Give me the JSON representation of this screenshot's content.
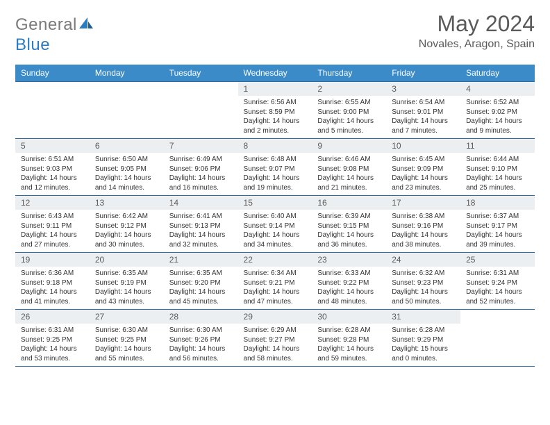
{
  "brand": {
    "word1": "General",
    "word2": "Blue"
  },
  "title": "May 2024",
  "location": "Novales, Aragon, Spain",
  "header_bg": "#3b8bc9",
  "rule_color": "#2b6ca3",
  "daynum_bg": "#eceff1",
  "dayHeaders": [
    "Sunday",
    "Monday",
    "Tuesday",
    "Wednesday",
    "Thursday",
    "Friday",
    "Saturday"
  ],
  "weeks": [
    [
      {
        "n": "",
        "sr": "",
        "ss": "",
        "dl": ""
      },
      {
        "n": "",
        "sr": "",
        "ss": "",
        "dl": ""
      },
      {
        "n": "",
        "sr": "",
        "ss": "",
        "dl": ""
      },
      {
        "n": "1",
        "sr": "6:56 AM",
        "ss": "8:59 PM",
        "dl": "14 hours and 2 minutes."
      },
      {
        "n": "2",
        "sr": "6:55 AM",
        "ss": "9:00 PM",
        "dl": "14 hours and 5 minutes."
      },
      {
        "n": "3",
        "sr": "6:54 AM",
        "ss": "9:01 PM",
        "dl": "14 hours and 7 minutes."
      },
      {
        "n": "4",
        "sr": "6:52 AM",
        "ss": "9:02 PM",
        "dl": "14 hours and 9 minutes."
      }
    ],
    [
      {
        "n": "5",
        "sr": "6:51 AM",
        "ss": "9:03 PM",
        "dl": "14 hours and 12 minutes."
      },
      {
        "n": "6",
        "sr": "6:50 AM",
        "ss": "9:05 PM",
        "dl": "14 hours and 14 minutes."
      },
      {
        "n": "7",
        "sr": "6:49 AM",
        "ss": "9:06 PM",
        "dl": "14 hours and 16 minutes."
      },
      {
        "n": "8",
        "sr": "6:48 AM",
        "ss": "9:07 PM",
        "dl": "14 hours and 19 minutes."
      },
      {
        "n": "9",
        "sr": "6:46 AM",
        "ss": "9:08 PM",
        "dl": "14 hours and 21 minutes."
      },
      {
        "n": "10",
        "sr": "6:45 AM",
        "ss": "9:09 PM",
        "dl": "14 hours and 23 minutes."
      },
      {
        "n": "11",
        "sr": "6:44 AM",
        "ss": "9:10 PM",
        "dl": "14 hours and 25 minutes."
      }
    ],
    [
      {
        "n": "12",
        "sr": "6:43 AM",
        "ss": "9:11 PM",
        "dl": "14 hours and 27 minutes."
      },
      {
        "n": "13",
        "sr": "6:42 AM",
        "ss": "9:12 PM",
        "dl": "14 hours and 30 minutes."
      },
      {
        "n": "14",
        "sr": "6:41 AM",
        "ss": "9:13 PM",
        "dl": "14 hours and 32 minutes."
      },
      {
        "n": "15",
        "sr": "6:40 AM",
        "ss": "9:14 PM",
        "dl": "14 hours and 34 minutes."
      },
      {
        "n": "16",
        "sr": "6:39 AM",
        "ss": "9:15 PM",
        "dl": "14 hours and 36 minutes."
      },
      {
        "n": "17",
        "sr": "6:38 AM",
        "ss": "9:16 PM",
        "dl": "14 hours and 38 minutes."
      },
      {
        "n": "18",
        "sr": "6:37 AM",
        "ss": "9:17 PM",
        "dl": "14 hours and 39 minutes."
      }
    ],
    [
      {
        "n": "19",
        "sr": "6:36 AM",
        "ss": "9:18 PM",
        "dl": "14 hours and 41 minutes."
      },
      {
        "n": "20",
        "sr": "6:35 AM",
        "ss": "9:19 PM",
        "dl": "14 hours and 43 minutes."
      },
      {
        "n": "21",
        "sr": "6:35 AM",
        "ss": "9:20 PM",
        "dl": "14 hours and 45 minutes."
      },
      {
        "n": "22",
        "sr": "6:34 AM",
        "ss": "9:21 PM",
        "dl": "14 hours and 47 minutes."
      },
      {
        "n": "23",
        "sr": "6:33 AM",
        "ss": "9:22 PM",
        "dl": "14 hours and 48 minutes."
      },
      {
        "n": "24",
        "sr": "6:32 AM",
        "ss": "9:23 PM",
        "dl": "14 hours and 50 minutes."
      },
      {
        "n": "25",
        "sr": "6:31 AM",
        "ss": "9:24 PM",
        "dl": "14 hours and 52 minutes."
      }
    ],
    [
      {
        "n": "26",
        "sr": "6:31 AM",
        "ss": "9:25 PM",
        "dl": "14 hours and 53 minutes."
      },
      {
        "n": "27",
        "sr": "6:30 AM",
        "ss": "9:25 PM",
        "dl": "14 hours and 55 minutes."
      },
      {
        "n": "28",
        "sr": "6:30 AM",
        "ss": "9:26 PM",
        "dl": "14 hours and 56 minutes."
      },
      {
        "n": "29",
        "sr": "6:29 AM",
        "ss": "9:27 PM",
        "dl": "14 hours and 58 minutes."
      },
      {
        "n": "30",
        "sr": "6:28 AM",
        "ss": "9:28 PM",
        "dl": "14 hours and 59 minutes."
      },
      {
        "n": "31",
        "sr": "6:28 AM",
        "ss": "9:29 PM",
        "dl": "15 hours and 0 minutes."
      },
      {
        "n": "",
        "sr": "",
        "ss": "",
        "dl": ""
      }
    ]
  ],
  "labels": {
    "sunrise": "Sunrise:",
    "sunset": "Sunset:",
    "daylight": "Daylight:"
  }
}
